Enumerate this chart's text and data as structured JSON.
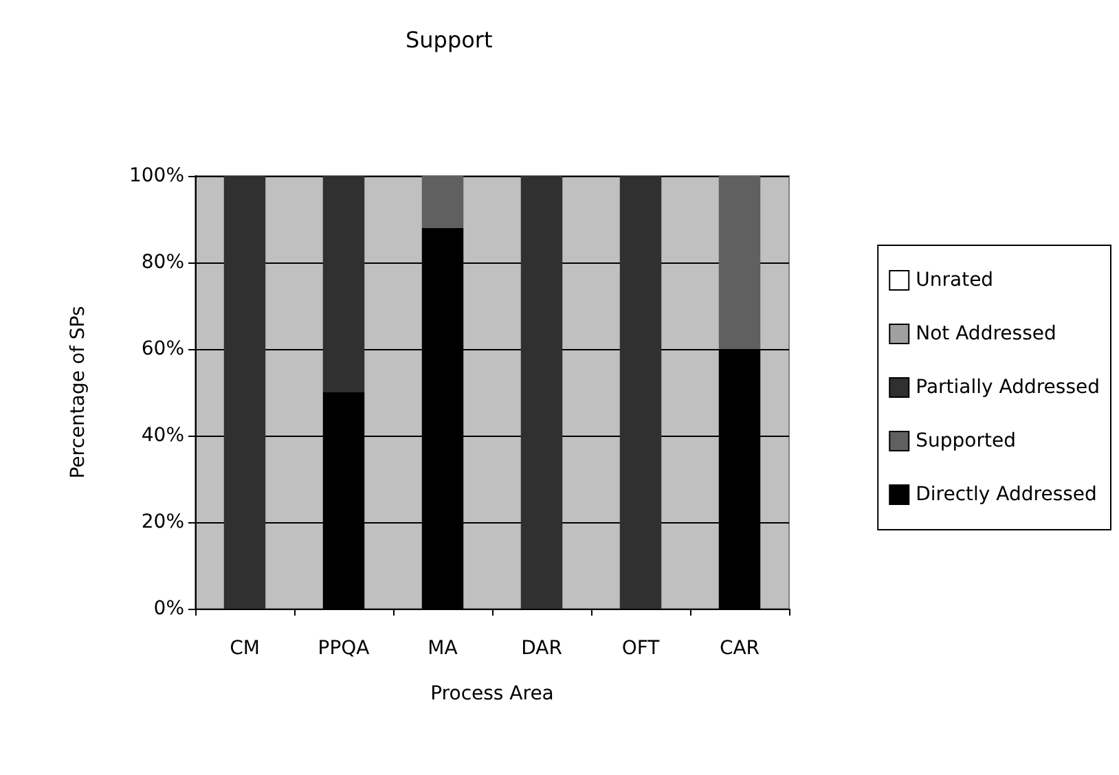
{
  "chart_data": {
    "type": "bar",
    "title": "Support",
    "xlabel": "Process Area",
    "ylabel": "Percentage of SPs",
    "categories": [
      "CM",
      "PPQA",
      "MA",
      "DAR",
      "OFT",
      "CAR"
    ],
    "stacked": true,
    "ylim": [
      0,
      100
    ],
    "yticks": [
      {
        "value": 0,
        "label": "0%"
      },
      {
        "value": 20,
        "label": "20%"
      },
      {
        "value": 40,
        "label": "40%"
      },
      {
        "value": 60,
        "label": "60%"
      },
      {
        "value": 80,
        "label": "80%"
      },
      {
        "value": 100,
        "label": "100%"
      }
    ],
    "grid": "y",
    "legend": "right",
    "series": [
      {
        "name": "Directly Addressed",
        "color": "#000000",
        "values": [
          0,
          50,
          88,
          0,
          0,
          60
        ]
      },
      {
        "name": "Supported",
        "color": "#606060",
        "values": [
          0,
          0,
          12,
          0,
          0,
          40
        ]
      },
      {
        "name": "Partially Addressed",
        "color": "#303030",
        "values": [
          100,
          50,
          0,
          100,
          100,
          0
        ]
      },
      {
        "name": "Not Addressed",
        "color": "#a0a0a0",
        "values": [
          0,
          0,
          0,
          0,
          0,
          0
        ]
      },
      {
        "name": "Unrated",
        "color": "#ffffff",
        "values": [
          0,
          0,
          0,
          0,
          0,
          0
        ]
      }
    ]
  }
}
